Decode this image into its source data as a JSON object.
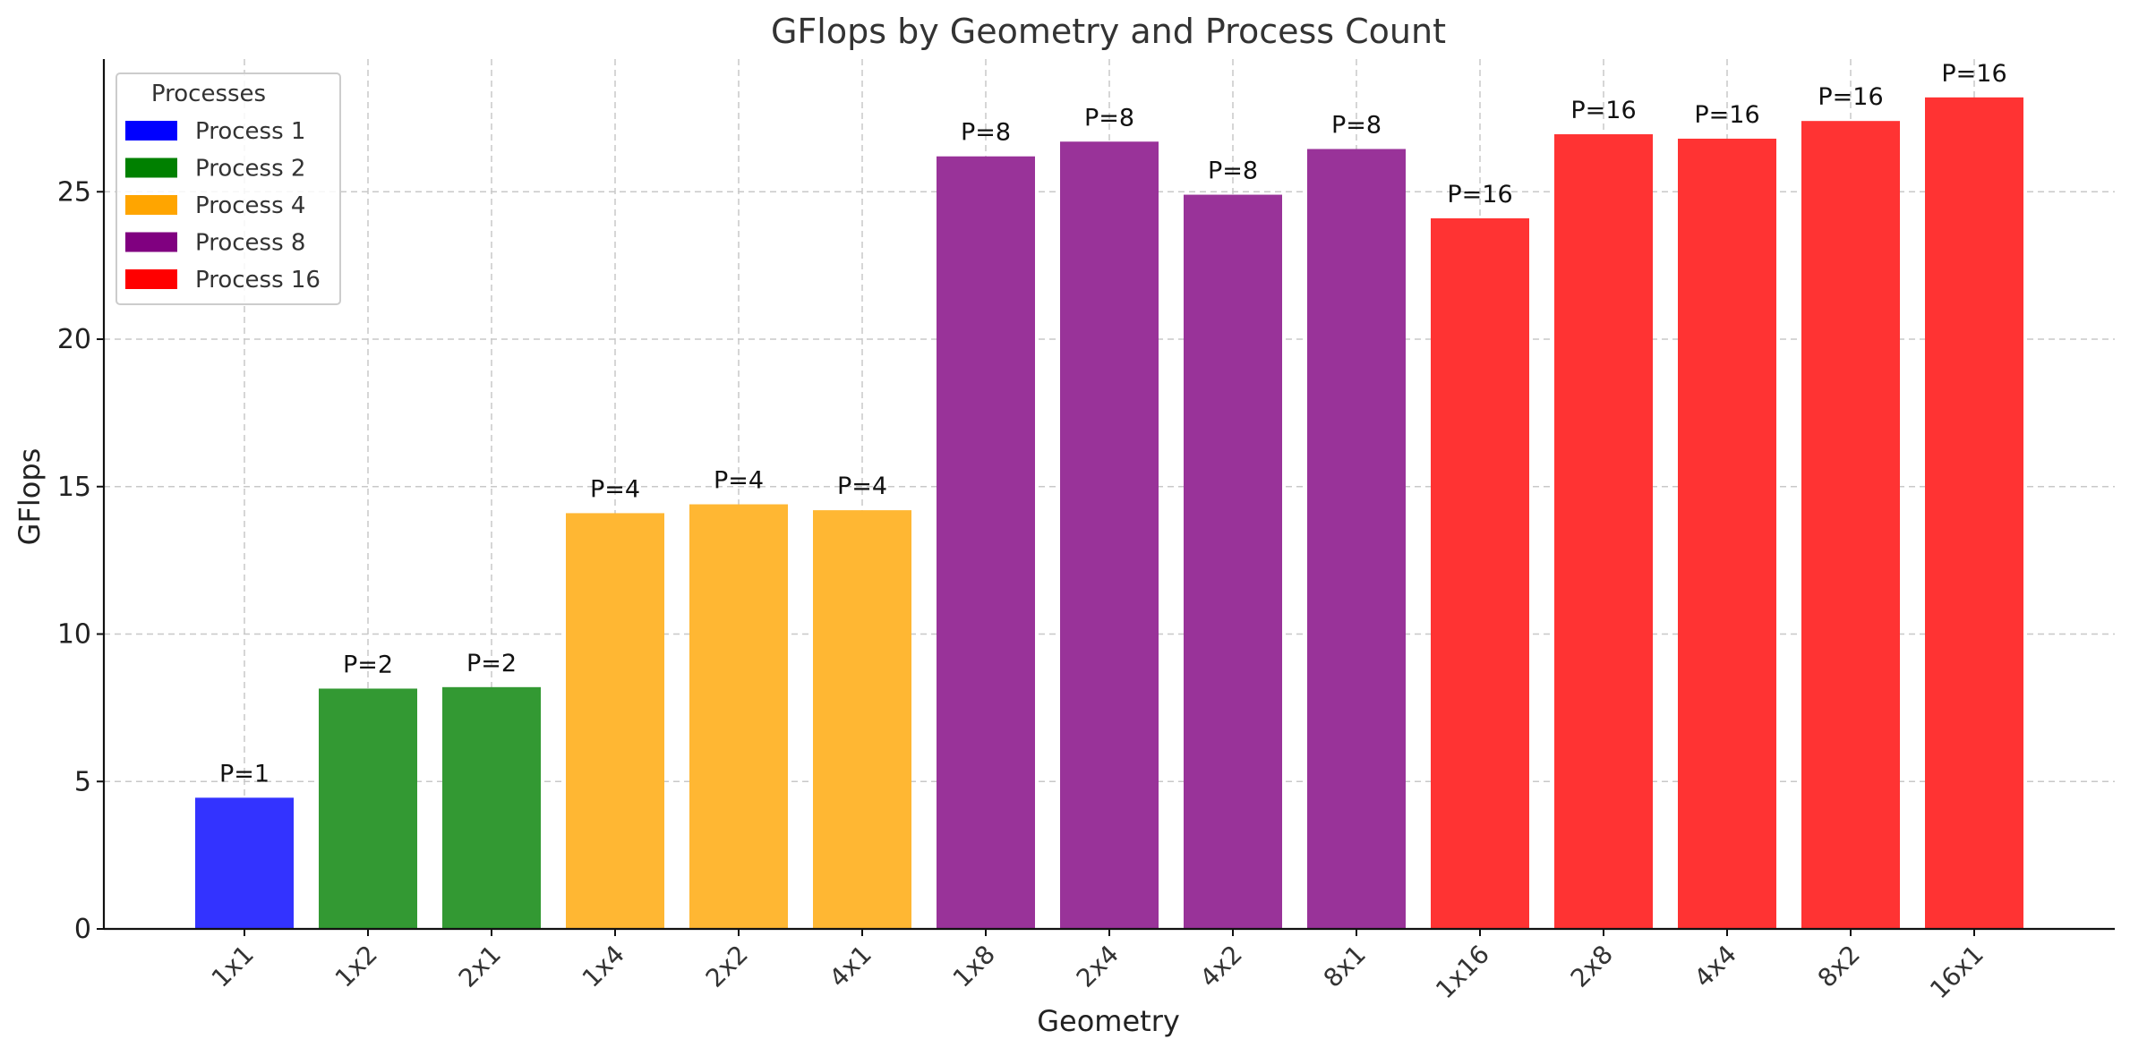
{
  "chart_data": {
    "type": "bar",
    "title": "GFlops by Geometry and Process Count",
    "xlabel": "Geometry",
    "ylabel": "GFlops",
    "ylim": [
      0,
      29.5
    ],
    "yticks": [
      0,
      5,
      10,
      15,
      20,
      25
    ],
    "grid": true,
    "legend": {
      "title": "Processes",
      "position": "top-left",
      "entries": [
        {
          "label": "Process 1",
          "color": "#0000ff"
        },
        {
          "label": "Process 2",
          "color": "#008000"
        },
        {
          "label": "Process 4",
          "color": "#ffa500"
        },
        {
          "label": "Process 8",
          "color": "#800080"
        },
        {
          "label": "Process 16",
          "color": "#ff0000"
        }
      ]
    },
    "categories": [
      "1x1",
      "1x2",
      "2x1",
      "1x4",
      "2x2",
      "4x1",
      "1x8",
      "2x4",
      "4x2",
      "8x1",
      "1x16",
      "2x8",
      "4x4",
      "8x2",
      "16x1"
    ],
    "values": [
      4.45,
      8.15,
      8.2,
      14.1,
      14.4,
      14.2,
      26.2,
      26.7,
      24.9,
      26.45,
      24.1,
      26.95,
      26.8,
      27.4,
      28.2
    ],
    "bar_labels": [
      "P=1",
      "P=2",
      "P=2",
      "P=4",
      "P=4",
      "P=4",
      "P=8",
      "P=8",
      "P=8",
      "P=8",
      "P=16",
      "P=16",
      "P=16",
      "P=16",
      "P=16"
    ],
    "bar_colors": [
      "#3333ff",
      "#339933",
      "#339933",
      "#ffb733",
      "#ffb733",
      "#ffb733",
      "#993399",
      "#993399",
      "#993399",
      "#993399",
      "#ff3333",
      "#ff3333",
      "#ff3333",
      "#ff3333",
      "#ff3333"
    ]
  }
}
